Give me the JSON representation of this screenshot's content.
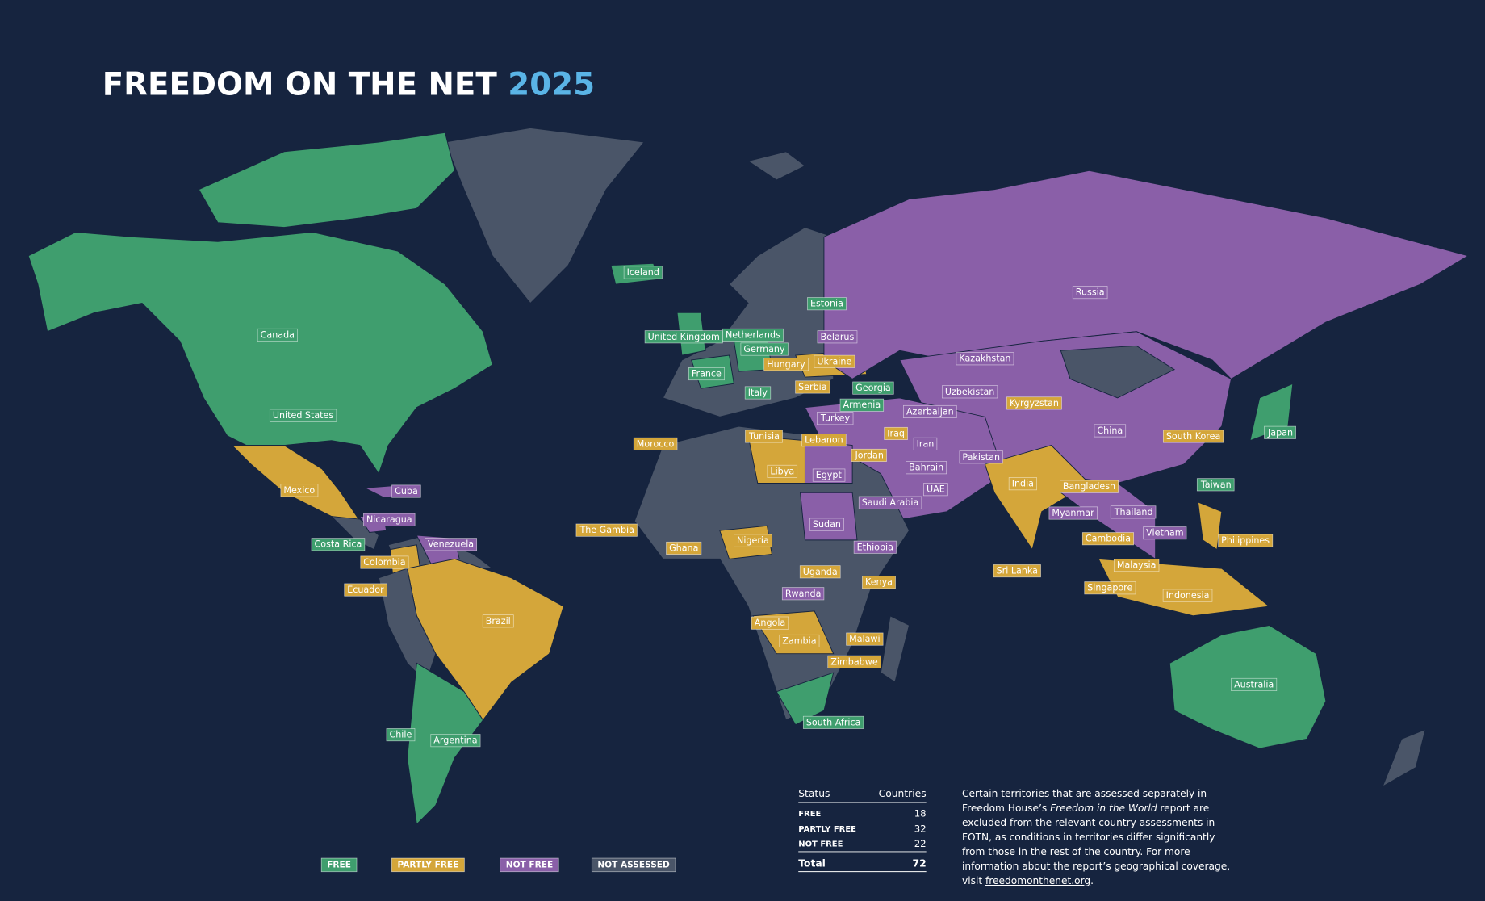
{
  "title": "FREEDOM ON THE NET",
  "year": 2025,
  "legend": [
    {
      "label": "FREE",
      "color": "#3f9e6e",
      "countries": [
        "Iceland",
        "Canada",
        "United States",
        "Estonia",
        "United Kingdom",
        "Netherlands",
        "Germany",
        "France",
        "Italy",
        "Georgia",
        "Armenia",
        "Japan",
        "Taiwan",
        "Costa Rica",
        "Chile",
        "Argentina",
        "South Africa",
        "Australia"
      ]
    },
    {
      "label": "PARTLY FREE",
      "color": "#d4a63a",
      "countries": [
        "Mexico",
        "Colombia",
        "Ecuador",
        "Brazil",
        "Hungary",
        "Ukraine",
        "Serbia",
        "Kyrgyzstan",
        "Morocco",
        "Tunisia",
        "Lebanon",
        "Iraq",
        "Jordan",
        "Libya",
        "South Korea",
        "India",
        "Bangladesh",
        "The Gambia",
        "Ghana",
        "Nigeria",
        "Uganda",
        "Kenya",
        "Angola",
        "Zambia",
        "Malawi",
        "Zimbabwe",
        "Sri Lanka",
        "Cambodia",
        "Malaysia",
        "Singapore",
        "Indonesia",
        "Philippines"
      ]
    },
    {
      "label": "NOT FREE",
      "color": "#8a5fa8",
      "countries": [
        "Cuba",
        "Nicaragua",
        "Venezuela",
        "Belarus",
        "Russia",
        "Kazakhstan",
        "Uzbekistan",
        "Azerbaijan",
        "Turkey",
        "Iran",
        "China",
        "Pakistan",
        "Bahrain",
        "UAE",
        "Egypt",
        "Saudi Arabia",
        "Sudan",
        "Ethiopia",
        "Rwanda",
        "Myanmar",
        "Thailand",
        "Vietnam"
      ]
    },
    {
      "label": "NOT ASSESSED",
      "color": "#4a5568"
    }
  ],
  "table": {
    "header": [
      "Status",
      "Countries"
    ],
    "rows": [
      [
        "FREE",
        18
      ],
      [
        "PARTLY FREE",
        32
      ],
      [
        "NOT FREE",
        22
      ]
    ],
    "total": [
      "Total",
      72
    ]
  },
  "note": {
    "before": "Certain territories that are assessed separately in Freedom House’s ",
    "italic": "Freedom in the World",
    "middle": " report are excluded from the relevant country assessments in FOTN, as conditions in territories differ significantly from those in the rest of the country. For more information about the report’s geographical coverage, visit ",
    "link": "freedomonthenet.org",
    "after": "."
  }
}
